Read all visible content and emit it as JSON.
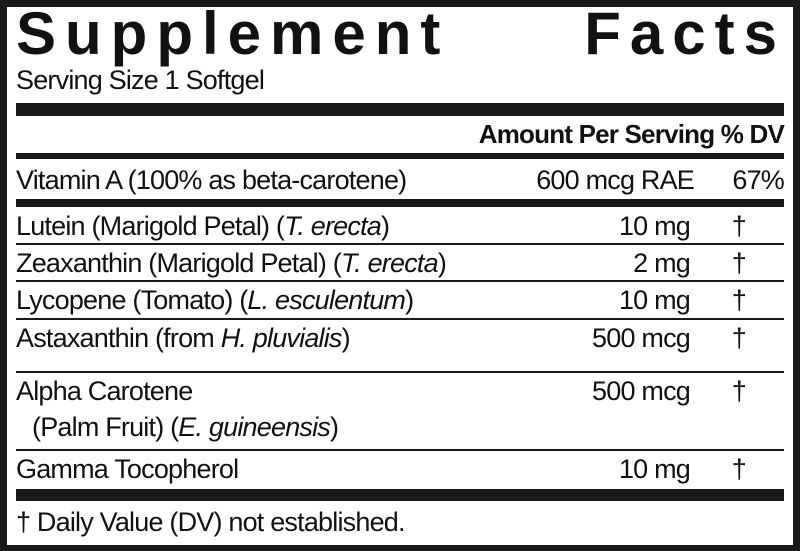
{
  "title": {
    "word1": "Supplement",
    "word2": "Facts"
  },
  "serving_size": "Serving Size 1 Softgel",
  "header": {
    "amount": "Amount Per Serving",
    "dv": "% DV"
  },
  "primary_row": {
    "name": "Vitamin A (100% as beta-carotene)",
    "amount": "600 mcg RAE",
    "dv": "67%"
  },
  "rows": [
    {
      "name": "Lutein (Marigold Petal) (",
      "latin": "T. erecta",
      "close": ")",
      "amount": "10 mg",
      "dv": "†"
    },
    {
      "name": "Zeaxanthin (Marigold Petal) (",
      "latin": "T. erecta",
      "close": ")",
      "amount": "2 mg",
      "dv": "†"
    },
    {
      "name": "Lycopene (Tomato) (",
      "latin": "L. esculentum",
      "close": ")",
      "amount": "10 mg",
      "dv": "†"
    },
    {
      "name": "Astaxanthin (from ",
      "latin": "H. pluvialis",
      "close": ")",
      "amount": "500 mcg",
      "dv": "†"
    },
    {
      "name": "Alpha Carotene",
      "line2": "(Palm Fruit) (",
      "latin": "E. guineensis",
      "close": ")",
      "amount": "500 mcg",
      "dv": "†"
    },
    {
      "name": "Gamma Tocopherol",
      "amount": "10 mg",
      "dv": "†"
    }
  ],
  "footnote": "† Daily Value (DV) not established.",
  "colors": {
    "ink": "#1a1a1a",
    "background": "#ffffff"
  }
}
